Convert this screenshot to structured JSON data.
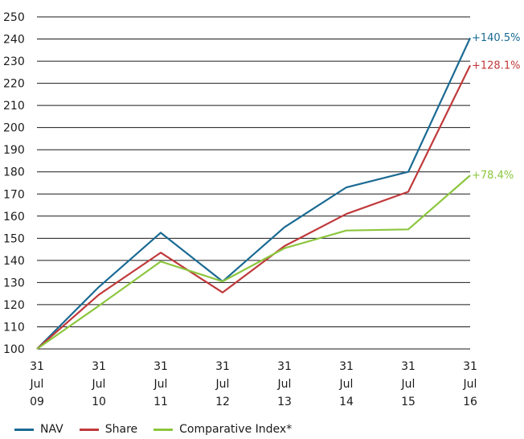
{
  "chart_data": {
    "type": "line",
    "categories": [
      [
        "31",
        "Jul",
        "09"
      ],
      [
        "31",
        "Jul",
        "10"
      ],
      [
        "31",
        "Jul",
        "11"
      ],
      [
        "31",
        "Jul",
        "12"
      ],
      [
        "31",
        "Jul",
        "13"
      ],
      [
        "31",
        "Jul",
        "14"
      ],
      [
        "31",
        "Jul",
        "15"
      ],
      [
        "31",
        "Jul",
        "16"
      ]
    ],
    "y_ticks": [
      100,
      110,
      120,
      130,
      140,
      150,
      160,
      170,
      180,
      190,
      200,
      210,
      220,
      230,
      240,
      250
    ],
    "ylim": [
      100,
      250
    ],
    "grid": "horizontal",
    "legend_position": "bottom-left",
    "series": [
      {
        "name": "NAV",
        "color": "#1a6a93",
        "values": [
          100,
          128,
          152.5,
          130.5,
          155,
          173,
          180,
          240.5
        ],
        "end_label": "+140.5%"
      },
      {
        "name": "Share",
        "color": "#c0393b",
        "values": [
          100,
          124.5,
          143.5,
          125.5,
          146.5,
          161,
          171,
          228.1
        ],
        "end_label": "+128.1%"
      },
      {
        "name": "Comparative Index*",
        "color": "#8cc63e",
        "values": [
          100,
          119.5,
          139.5,
          130.5,
          145.5,
          153.5,
          154,
          178.4
        ],
        "end_label": "+78.4%"
      }
    ]
  }
}
